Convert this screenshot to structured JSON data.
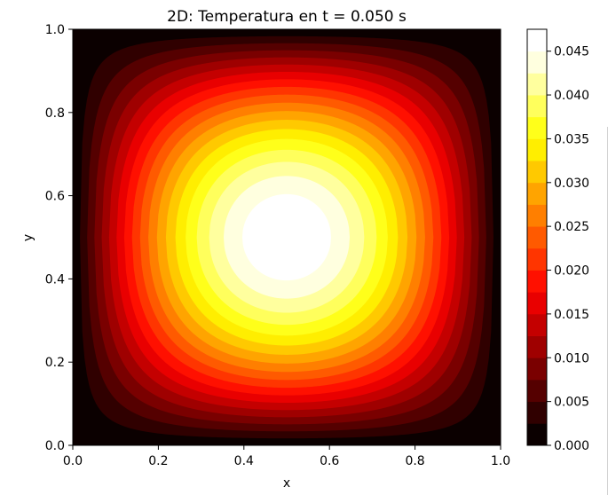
{
  "chart_data": {
    "type": "heatmap",
    "subtype": "filled-contour",
    "title": "2D: Temperatura en t = 0.050 s",
    "xlabel": "x",
    "ylabel": "y",
    "xlim": [
      0.0,
      1.0
    ],
    "ylim": [
      0.0,
      1.0
    ],
    "xticks": [
      "0.0",
      "0.2",
      "0.4",
      "0.6",
      "0.8",
      "1.0"
    ],
    "yticks": [
      "0.0",
      "0.2",
      "0.4",
      "0.6",
      "0.8",
      "1.0"
    ],
    "grid": false,
    "colormap": "hot",
    "field": {
      "description_formula": "T(x,y) = A * sin(pi x) * sin(pi y)",
      "peak_value": 0.0475,
      "peak_location": [
        0.5,
        0.5
      ]
    },
    "contour_levels": [
      0.0,
      0.0025,
      0.005,
      0.0075,
      0.01,
      0.0125,
      0.015,
      0.0175,
      0.02,
      0.0225,
      0.025,
      0.0275,
      0.03,
      0.0325,
      0.035,
      0.0375,
      0.04,
      0.0425,
      0.045,
      0.0475
    ],
    "level_colors": [
      "#0b0000",
      "#300000",
      "#550000",
      "#7a0000",
      "#9f0000",
      "#c40000",
      "#e90000",
      "#ff1000",
      "#ff3500",
      "#ff5a00",
      "#ff7f00",
      "#ffa400",
      "#ffc900",
      "#ffee00",
      "#ffff1a",
      "#ffff5c",
      "#ffff9e",
      "#ffffdf",
      "#ffffff"
    ],
    "colorbar": {
      "range": [
        0.0,
        0.0475
      ],
      "ticks": [
        "0.000",
        "0.005",
        "0.010",
        "0.015",
        "0.020",
        "0.025",
        "0.030",
        "0.035",
        "0.040",
        "0.045"
      ],
      "tick_values": [
        0.0,
        0.005,
        0.01,
        0.015,
        0.02,
        0.025,
        0.03,
        0.035,
        0.04,
        0.045
      ]
    }
  }
}
